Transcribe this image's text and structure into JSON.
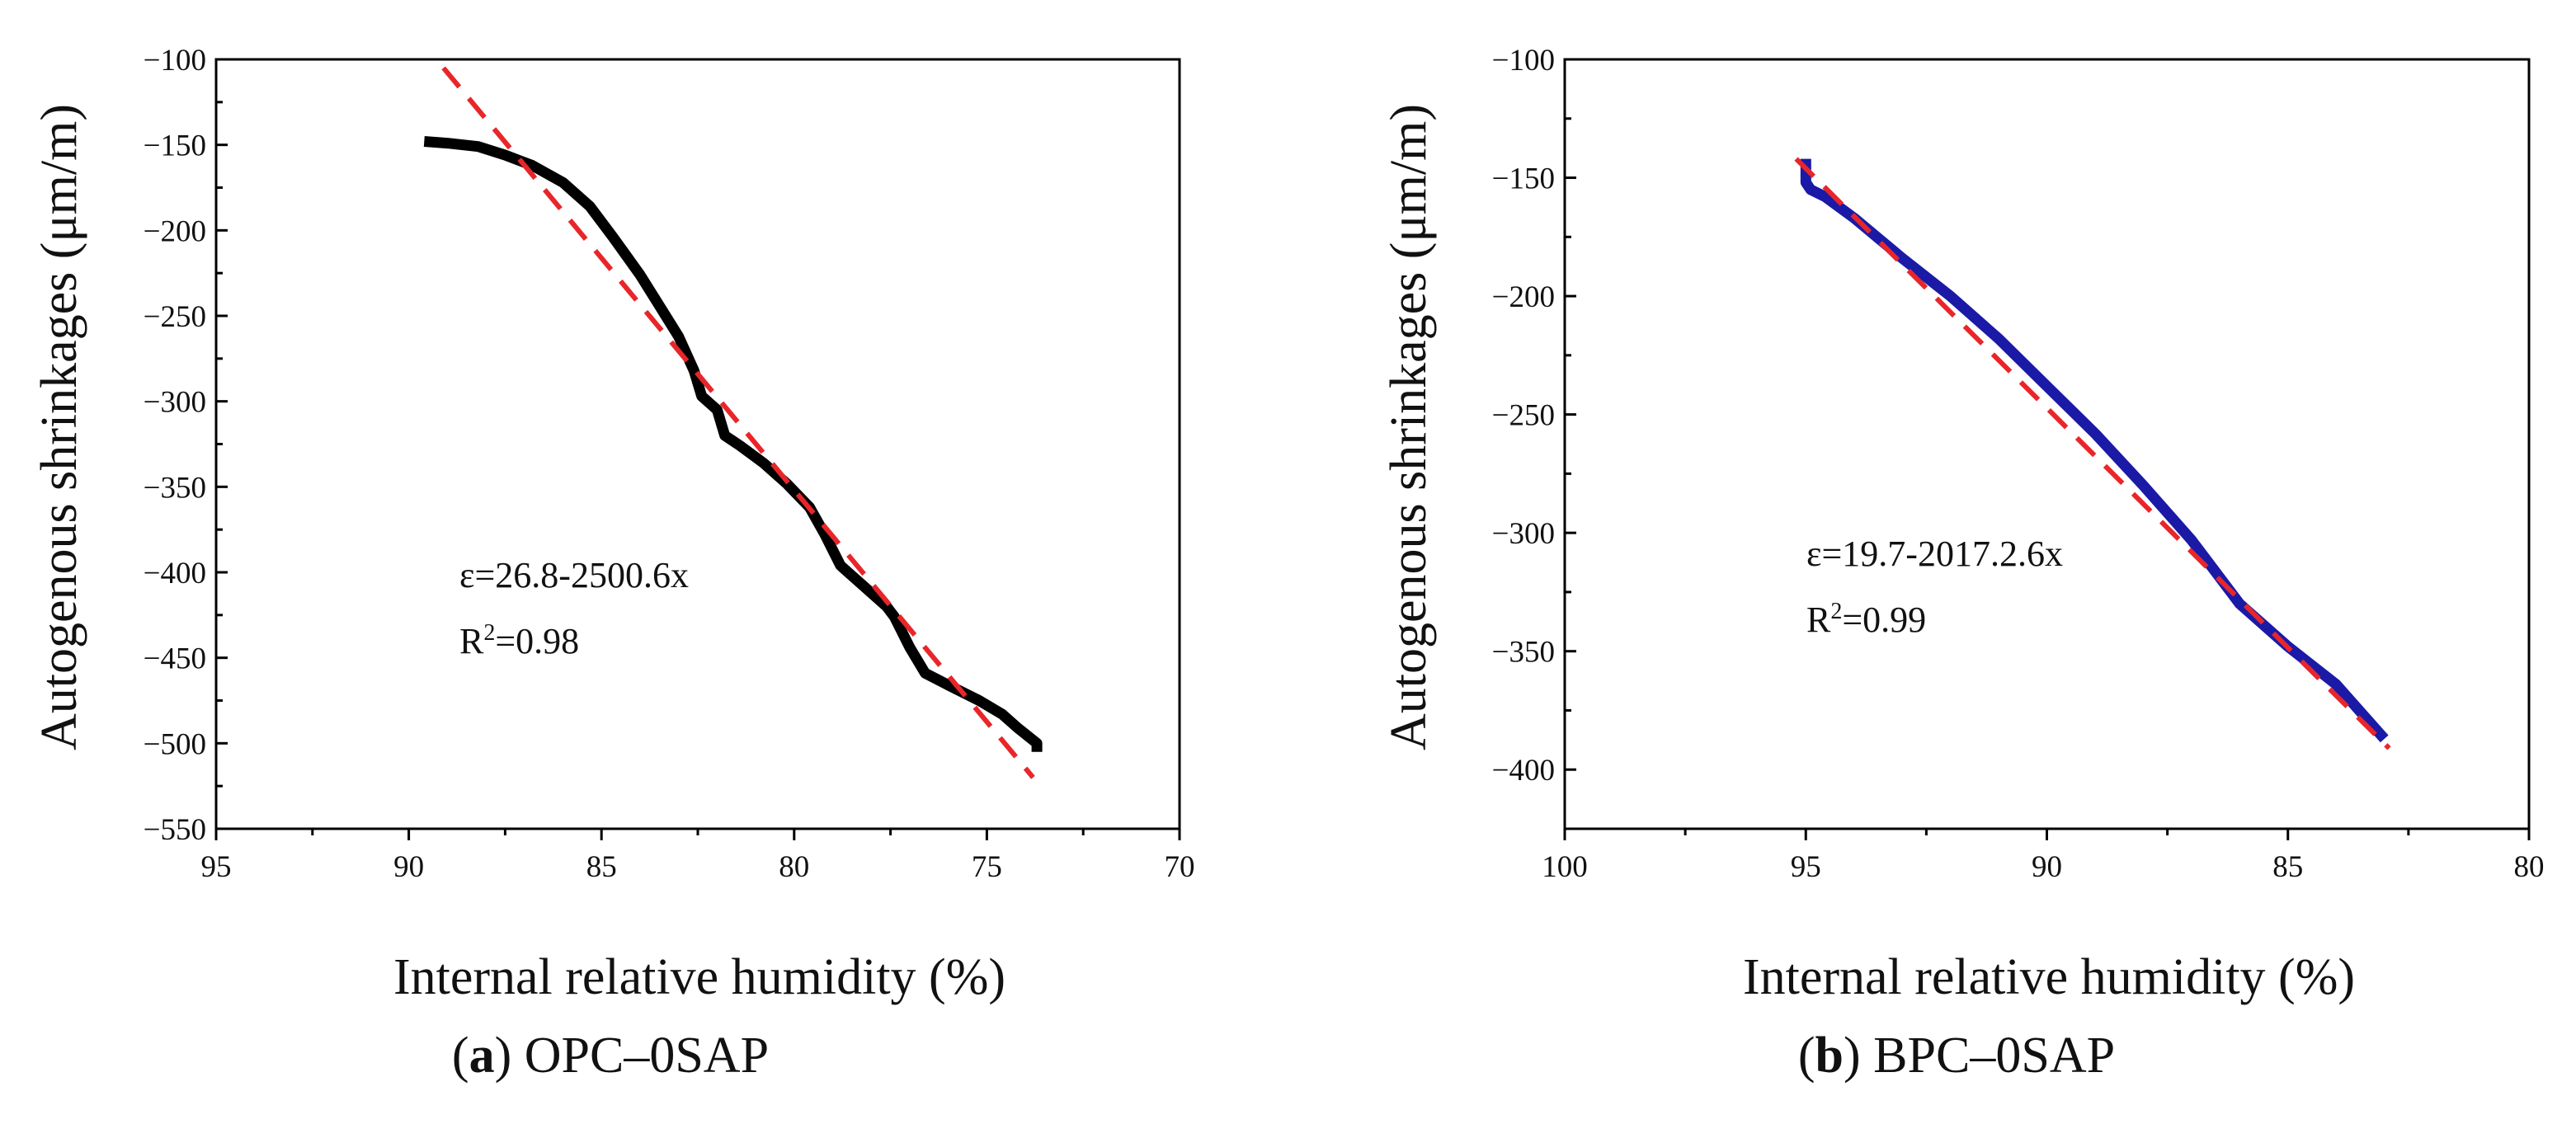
{
  "chart_data": [
    {
      "id": "a",
      "type": "line",
      "caption_letter": "a",
      "caption_text": "OPC–0SAP",
      "xlabel": "Internal relative humidity (%)",
      "ylabel": "Autogenous shrinkages (μm/m)",
      "xlim": [
        95,
        70
      ],
      "ylim": [
        -550,
        -100
      ],
      "xticks": [
        95,
        90,
        85,
        80,
        75,
        70
      ],
      "yticks": [
        -100,
        -150,
        -200,
        -250,
        -300,
        -350,
        -400,
        -450,
        -500,
        -550
      ],
      "xtick_labels": [
        "95",
        "90",
        "85",
        "80",
        "75",
        "70"
      ],
      "ytick_labels": [
        "−100",
        "−150",
        "−200",
        "−250",
        "−300",
        "−350",
        "−400",
        "−450",
        "−500",
        "−550"
      ],
      "equation": "ε=26.8-2500.6x",
      "r2_prefix": "R",
      "r2_sup": "2",
      "r2_value": "=0.98",
      "series": [
        {
          "name": "measured",
          "color": "#000000",
          "x": [
            89.6,
            89.0,
            88.2,
            87.5,
            86.8,
            86.0,
            85.3,
            84.7,
            84.0,
            83.5,
            83.0,
            82.6,
            82.4,
            82.0,
            81.8,
            81.4,
            80.8,
            80.2,
            79.6,
            79.2,
            78.8,
            78.2,
            77.6,
            77.4,
            77.0,
            76.6,
            76.0,
            75.2,
            74.6,
            74.2,
            73.7,
            73.7
          ],
          "y": [
            -148,
            -149,
            -151,
            -156,
            -162,
            -172,
            -186,
            -204,
            -226,
            -244,
            -262,
            -282,
            -297,
            -305,
            -320,
            -326,
            -336,
            -348,
            -362,
            -378,
            -396,
            -408,
            -420,
            -426,
            -444,
            -459,
            -466,
            -475,
            -483,
            -491,
            -500,
            -505
          ]
        }
      ],
      "fit": {
        "name": "linear fit",
        "color": "#e8262a",
        "x": [
          89.1,
          73.8
        ],
        "y": [
          -105,
          -520
        ]
      }
    },
    {
      "id": "b",
      "type": "line",
      "caption_letter": "b",
      "caption_text": "BPC–0SAP",
      "xlabel": "Internal relative humidity (%)",
      "ylabel": "Autogenous shrinkages (μm/m)",
      "xlim": [
        100,
        80
      ],
      "ylim": [
        -425,
        -100
      ],
      "xticks": [
        100,
        95,
        90,
        85,
        80
      ],
      "yticks": [
        -100,
        -150,
        -200,
        -250,
        -300,
        -350,
        -400
      ],
      "xtick_labels": [
        "100",
        "95",
        "90",
        "85",
        "80"
      ],
      "ytick_labels": [
        "−100",
        "−150",
        "−200",
        "−250",
        "−300",
        "−350",
        "−400"
      ],
      "equation": "ε=19.7-2017.2.6x",
      "r2_prefix": "R",
      "r2_sup": "2",
      "r2_value": "=0.99",
      "series": [
        {
          "name": "measured",
          "color": "#1a1aa6",
          "x": [
            95.0,
            95.0,
            94.9,
            94.6,
            94.0,
            93.0,
            92.0,
            91.0,
            90.0,
            89.0,
            88.0,
            87.0,
            86.0,
            85.0,
            84.0,
            83.0
          ],
          "y": [
            -142,
            -152,
            -155,
            -158,
            -167,
            -184,
            -200,
            -218,
            -238,
            -258,
            -280,
            -303,
            -330,
            -348,
            -364,
            -387
          ]
        }
      ],
      "fit": {
        "name": "linear fit",
        "color": "#e8262a",
        "x": [
          95.2,
          82.9
        ],
        "y": [
          -142,
          -391
        ]
      }
    }
  ]
}
